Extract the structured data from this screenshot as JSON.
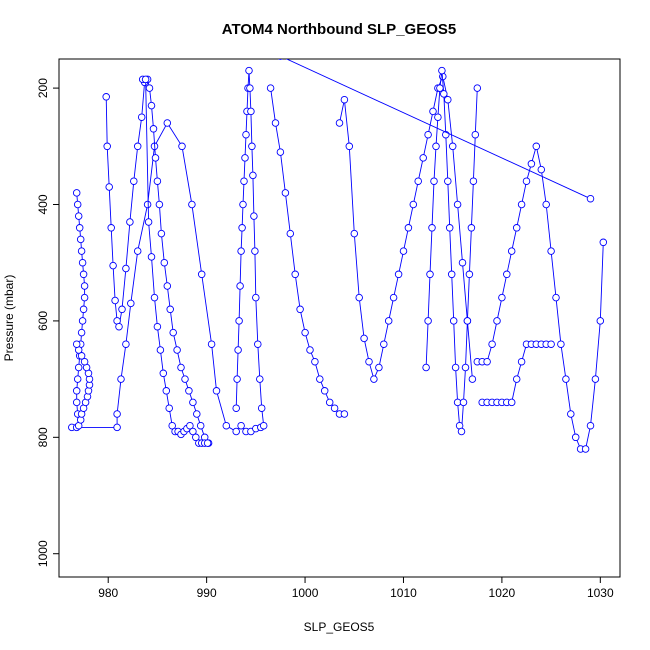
{
  "chart_data": {
    "type": "scatter",
    "title": "ATOM4 Northbound SLP_GEOS5",
    "xlabel": "SLP_GEOS5",
    "ylabel": "Pressure (mbar)",
    "xlim": [
      975,
      1032
    ],
    "ylim": [
      1040,
      150
    ],
    "y_reversed": true,
    "x_ticks": [
      980,
      990,
      1000,
      1010,
      1020,
      1030
    ],
    "y_ticks": [
      200,
      400,
      600,
      800,
      1000
    ],
    "grid": false,
    "legend": "none",
    "marker": "open-circle",
    "connected": true,
    "color": "#0000ff",
    "series": [
      {
        "x": [
          976.3,
          976.8,
          980.9,
          980.9,
          981.3,
          981.8,
          982.3,
          983.0,
          984.0,
          984.7,
          986.0,
          987.5,
          988.5,
          989.5,
          990.5,
          991.0,
          992.0,
          993.0,
          993.5,
          994.0,
          994.5,
          995.0,
          995.5
        ],
        "y": [
          783,
          783,
          783,
          760,
          700,
          640,
          570,
          480,
          400,
          300,
          260,
          300,
          400,
          520,
          640,
          720,
          780,
          790,
          780,
          790,
          790,
          785,
          783
        ]
      },
      {
        "x": [
          976.8,
          976.9,
          977.0,
          977.1,
          977.2,
          977.3,
          977.4,
          977.5,
          977.6,
          977.6,
          977.5,
          977.4,
          977.3,
          977.2,
          977.1,
          977.0,
          976.9,
          976.8,
          976.8,
          976.9,
          977.0,
          977.2,
          977.3,
          977.5,
          977.7,
          977.9,
          978.0,
          978.1,
          978.1,
          978.0,
          977.8,
          977.6,
          977.3,
          977.0,
          976.8
        ],
        "y": [
          380,
          400,
          420,
          440,
          460,
          480,
          500,
          520,
          540,
          560,
          580,
          600,
          620,
          640,
          660,
          680,
          700,
          720,
          740,
          760,
          780,
          770,
          760,
          750,
          740,
          730,
          720,
          710,
          700,
          690,
          680,
          670,
          660,
          650,
          640
        ]
      },
      {
        "x": [
          979.8,
          979.9,
          980.1,
          980.3,
          980.5,
          980.7,
          980.9,
          981.1,
          981.4,
          981.8,
          982.2,
          982.6,
          983.0,
          983.4,
          983.7,
          984.0,
          984.2,
          984.4,
          984.6,
          984.8,
          985.0,
          985.2,
          985.4,
          985.7,
          986.0,
          986.3,
          986.6,
          987.0,
          987.4,
          987.8,
          988.2,
          988.6,
          989.0,
          989.4,
          989.8,
          990.2
        ],
        "y": [
          215,
          300,
          370,
          440,
          505,
          565,
          600,
          610,
          580,
          510,
          430,
          360,
          300,
          250,
          190,
          185,
          200,
          230,
          270,
          320,
          360,
          400,
          450,
          500,
          540,
          580,
          620,
          650,
          680,
          700,
          720,
          740,
          760,
          780,
          800,
          810
        ]
      },
      {
        "x": [
          983.5,
          983.8,
          984.1,
          984.4,
          984.7,
          985.0,
          985.3,
          985.6,
          985.9,
          986.2,
          986.5,
          986.8,
          987.1,
          987.4,
          987.7,
          988.0,
          988.3,
          988.6,
          988.9,
          989.2,
          989.5,
          989.8,
          990.1
        ],
        "y": [
          185,
          185,
          430,
          490,
          560,
          610,
          650,
          690,
          720,
          750,
          780,
          790,
          790,
          795,
          790,
          785,
          780,
          790,
          800,
          810,
          810,
          810,
          810
        ]
      },
      {
        "x": [
          993.0,
          993.1,
          993.2,
          993.3,
          993.4,
          993.5,
          993.6,
          993.7,
          993.8,
          993.9,
          994.0,
          994.1,
          994.2,
          994.3,
          994.4,
          994.5,
          994.6,
          994.7,
          994.8,
          994.9,
          995.0,
          995.2,
          995.4,
          995.6,
          995.8
        ],
        "y": [
          750,
          700,
          650,
          600,
          540,
          480,
          440,
          400,
          360,
          320,
          280,
          240,
          200,
          170,
          200,
          240,
          300,
          350,
          420,
          480,
          560,
          640,
          700,
          750,
          780
        ]
      },
      {
        "x": [
          996.5,
          997.0,
          997.5,
          998.0,
          998.5,
          999.0,
          999.5,
          1000.0,
          1000.5,
          1001.0,
          1001.5,
          1002.0,
          1002.5,
          1003.0,
          1003.5,
          1004.0
        ],
        "y": [
          200,
          260,
          310,
          380,
          450,
          520,
          580,
          620,
          650,
          670,
          700,
          720,
          740,
          750,
          760,
          760
        ]
      },
      {
        "x": [
          1003.5,
          1004.0,
          1004.5,
          1005.0,
          1005.5,
          1006.0,
          1006.5,
          1007.0,
          1007.5,
          1008.0,
          1008.5,
          1009.0,
          1009.5,
          1010.0,
          1010.5,
          1011.0,
          1011.5,
          1012.0,
          1012.5,
          1013.0,
          1013.5,
          1014.0,
          1014.5,
          1015.0,
          1015.5,
          1016.0,
          1016.5,
          1017.0
        ],
        "y": [
          260,
          220,
          300,
          450,
          560,
          630,
          670,
          700,
          680,
          640,
          600,
          560,
          520,
          480,
          440,
          400,
          360,
          320,
          280,
          240,
          200,
          180,
          220,
          300,
          400,
          500,
          600,
          700
        ]
      },
      {
        "x": [
          1012.3,
          1012.5,
          1012.7,
          1012.9,
          1013.1,
          1013.3,
          1013.5,
          1013.7,
          1013.9,
          1014.1,
          1014.3,
          1014.5,
          1014.7,
          1014.9,
          1015.1,
          1015.3,
          1015.5,
          1015.7,
          1015.9,
          1016.1,
          1016.3,
          1016.5,
          1016.7,
          1016.9,
          1017.1,
          1017.3,
          1017.5
        ],
        "y": [
          680,
          600,
          520,
          440,
          360,
          300,
          250,
          200,
          170,
          210,
          280,
          360,
          440,
          520,
          600,
          680,
          740,
          780,
          790,
          740,
          680,
          600,
          520,
          440,
          360,
          280,
          200
        ]
      },
      {
        "x": [
          1017.5,
          1018.0,
          1018.5,
          1019.0,
          1019.5,
          1020.0,
          1020.5,
          1021.0,
          1021.5,
          1022.0,
          1022.5,
          1023.0,
          1023.5,
          1024.0,
          1024.5,
          1025.0,
          1025.5,
          1026.0,
          1026.5,
          1027.0,
          1027.5,
          1028.0,
          1028.5,
          1029.0,
          1029.5,
          1030.0,
          1030.3
        ],
        "y": [
          670,
          670,
          670,
          640,
          600,
          560,
          520,
          480,
          440,
          400,
          360,
          330,
          300,
          340,
          400,
          480,
          560,
          640,
          700,
          760,
          800,
          820,
          820,
          780,
          700,
          600,
          465
        ]
      },
      {
        "x": [
          1018.0,
          1018.5,
          1019.0,
          1019.5,
          1020.0,
          1020.5,
          1021.0,
          1021.5,
          1022.0,
          1022.5,
          1023.0,
          1023.5,
          1024.0,
          1024.5,
          1025.0
        ],
        "y": [
          740,
          740,
          740,
          740,
          740,
          740,
          740,
          700,
          670,
          640,
          640,
          640,
          640,
          640,
          640
        ]
      },
      {
        "x": [
          997.5,
          1029.0
        ],
        "y": [
          145,
          390
        ]
      }
    ]
  }
}
